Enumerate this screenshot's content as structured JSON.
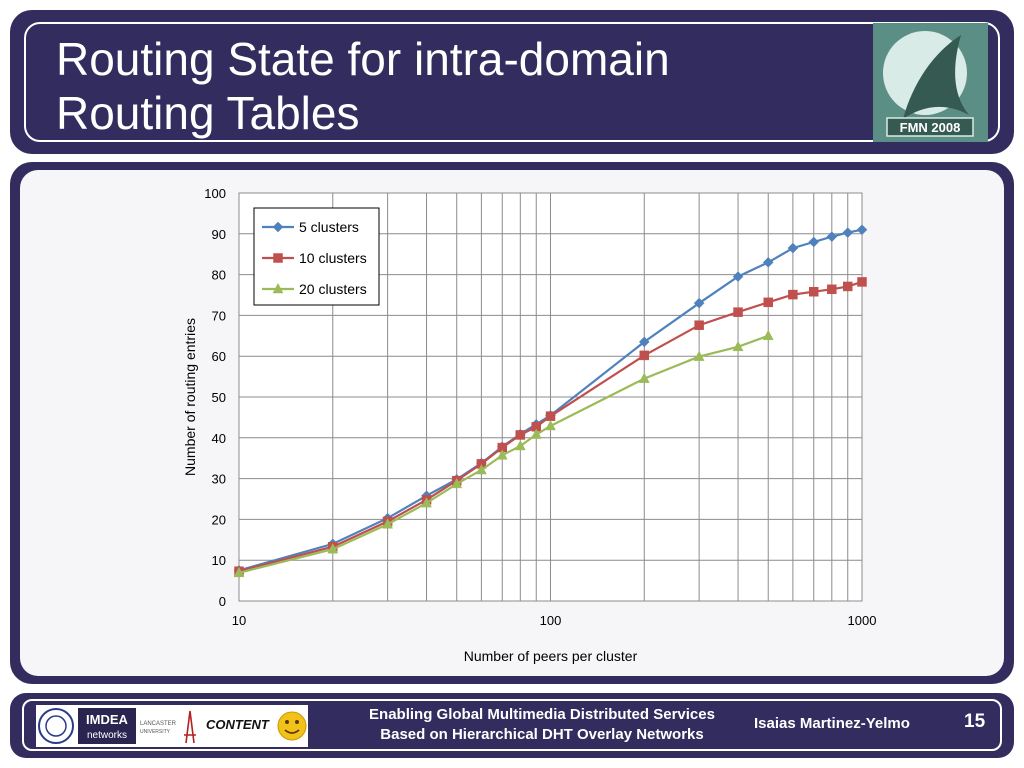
{
  "slide": {
    "title_line1": "Routing State for intra-domain",
    "title_line2": "Routing Tables",
    "logo_text": "FMN 2008"
  },
  "footer": {
    "logo_imdea": "IMDEA",
    "logo_imdea2": "networks",
    "logo_lancaster": "LANCASTER",
    "logo_lancaster2": "UNIVERSITY",
    "logo_content": "CONTENT",
    "text_line1": "Enabling Global Multimedia Distributed Services",
    "text_line2": "Based on Hierarchical DHT Overlay Networks",
    "author": "Isaias Martinez-Yelmo",
    "page": "15"
  },
  "chart_data": {
    "type": "line",
    "xlabel": "Number of peers per cluster",
    "ylabel": "Number of routing entries",
    "xscale": "log",
    "xlim": [
      10,
      1000
    ],
    "ylim": [
      0,
      100
    ],
    "xticks": [
      "10",
      "100",
      "1000"
    ],
    "yticks": [
      "0",
      "10",
      "20",
      "30",
      "40",
      "50",
      "60",
      "70",
      "80",
      "90",
      "100"
    ],
    "grid": true,
    "legend_position": "top-left",
    "series": [
      {
        "name": "5 clusters",
        "color": "#4f81bd",
        "marker": "diamond",
        "x": [
          10,
          20,
          30,
          40,
          50,
          60,
          70,
          80,
          90,
          100,
          200,
          300,
          400,
          500,
          600,
          700,
          800,
          900,
          1000
        ],
        "y": [
          7.5,
          14,
          20.3,
          25.8,
          29.8,
          33.8,
          37.8,
          40.9,
          43.3,
          45.5,
          63.5,
          73,
          79.5,
          83,
          86.5,
          88,
          89.3,
          90.3,
          91
        ]
      },
      {
        "name": "10 clusters",
        "color": "#c0504d",
        "marker": "square",
        "x": [
          10,
          20,
          30,
          40,
          50,
          60,
          70,
          80,
          90,
          100,
          200,
          300,
          400,
          500,
          600,
          700,
          800,
          900,
          1000
        ],
        "y": [
          7.3,
          13.3,
          19.5,
          24.8,
          29.5,
          33.6,
          37.6,
          40.7,
          42.7,
          45.3,
          60.2,
          67.6,
          70.8,
          73.2,
          75.1,
          75.8,
          76.4,
          77.1,
          78.2
        ]
      },
      {
        "name": "20 clusters",
        "color": "#9bbb59",
        "marker": "triangle",
        "x": [
          10,
          20,
          30,
          40,
          50,
          60,
          70,
          80,
          90,
          100,
          200,
          300,
          400,
          500
        ],
        "y": [
          6.9,
          12.7,
          18.8,
          24,
          28.7,
          32.1,
          35.7,
          38,
          40.8,
          42.9,
          54.5,
          59.9,
          62.3,
          65
        ]
      }
    ]
  }
}
